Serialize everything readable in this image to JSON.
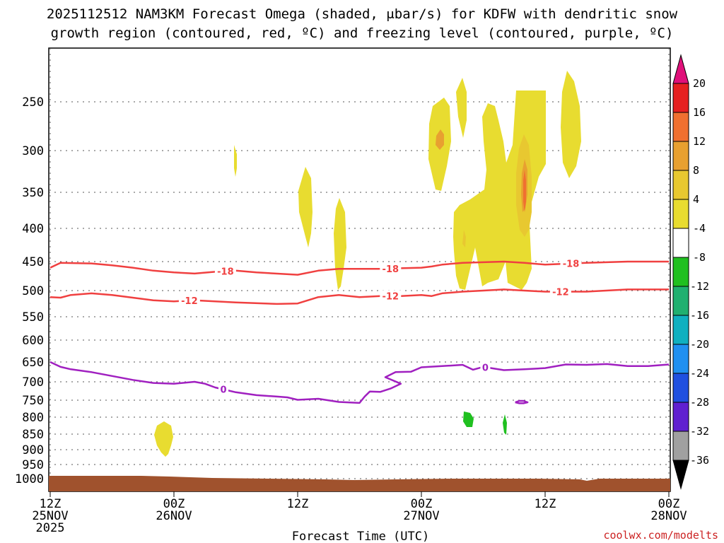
{
  "chart_data": {
    "type": "heatmap",
    "title_line1": "2025112512 NAM3KM Forecast Omega (shaded, μbar/s) for KDFW with dendritic snow",
    "title_line2": "growth region (contoured, red, ºC) and freezing level (contoured, purple, ºC)",
    "xlabel": "Forecast Time (UTC)",
    "credit": "coolwx.com/modelts",
    "x_hours_range": [
      0,
      60
    ],
    "y_pressure_range": [
      1050,
      200
    ],
    "x_ticks": [
      {
        "hour": 0,
        "lines": [
          "12Z",
          "25NOV",
          "2025"
        ]
      },
      {
        "hour": 12,
        "lines": [
          "00Z",
          "26NOV"
        ]
      },
      {
        "hour": 24,
        "lines": [
          "12Z"
        ]
      },
      {
        "hour": 36,
        "lines": [
          "00Z",
          "27NOV"
        ]
      },
      {
        "hour": 48,
        "lines": [
          "12Z"
        ]
      },
      {
        "hour": 60,
        "lines": [
          "00Z",
          "28NOV"
        ]
      }
    ],
    "y_ticks": [
      "250",
      "300",
      "350",
      "400",
      "450",
      "500",
      "550",
      "600",
      "650",
      "700",
      "750",
      "800",
      "850",
      "900",
      "950",
      "1000"
    ],
    "colorbar": {
      "labels": [
        "20",
        "16",
        "12",
        "8",
        "4",
        "-4",
        "-8",
        "-12",
        "-16",
        "-20",
        "-24",
        "-28",
        "-32",
        "-36"
      ],
      "colors": [
        "#e62020",
        "#f07030",
        "#e8a030",
        "#e8c830",
        "#e8dc30",
        "#ffffff",
        "#20c020",
        "#20b070",
        "#10b0c0",
        "#2090f0",
        "#2050e0",
        "#6020d0",
        "#9010c0",
        "#a0a0a0"
      ],
      "top_triangle_color": "#e0107a",
      "bottom_triangle_color": "#000000"
    },
    "contours": [
      {
        "name": "-18",
        "color": "#f04040",
        "points": [
          [
            0,
            460
          ],
          [
            1,
            452
          ],
          [
            4,
            453
          ],
          [
            6,
            456
          ],
          [
            8,
            460
          ],
          [
            10,
            465
          ],
          [
            12,
            468
          ],
          [
            14,
            470
          ],
          [
            16,
            467
          ],
          [
            18,
            465
          ],
          [
            20,
            468
          ],
          [
            24,
            472
          ],
          [
            26,
            465
          ],
          [
            28,
            462
          ],
          [
            30,
            462
          ],
          [
            32,
            462
          ],
          [
            34,
            461
          ],
          [
            36,
            460
          ],
          [
            37,
            458
          ],
          [
            38,
            455
          ],
          [
            40,
            452
          ],
          [
            44,
            450
          ],
          [
            46,
            452
          ],
          [
            48,
            455
          ],
          [
            52,
            452
          ],
          [
            56,
            450
          ],
          [
            60,
            450
          ]
        ],
        "label_hours": [
          17,
          33,
          50.5
        ]
      },
      {
        "name": "-12",
        "color": "#f04040",
        "points": [
          [
            0,
            512
          ],
          [
            1,
            513
          ],
          [
            2,
            508
          ],
          [
            4,
            505
          ],
          [
            6,
            508
          ],
          [
            8,
            513
          ],
          [
            10,
            518
          ],
          [
            12,
            520
          ],
          [
            14,
            518
          ],
          [
            18,
            522
          ],
          [
            22,
            525
          ],
          [
            24,
            524
          ],
          [
            26,
            512
          ],
          [
            28,
            508
          ],
          [
            30,
            512
          ],
          [
            32,
            510
          ],
          [
            34,
            510
          ],
          [
            36,
            508
          ],
          [
            37,
            510
          ],
          [
            38,
            505
          ],
          [
            40,
            502
          ],
          [
            42,
            500
          ],
          [
            44,
            498
          ],
          [
            46,
            500
          ],
          [
            48,
            502
          ],
          [
            52,
            502
          ],
          [
            56,
            498
          ],
          [
            60,
            498
          ]
        ],
        "label_hours": [
          13.5,
          33,
          49.5
        ]
      },
      {
        "name": "0",
        "color": "#a020c0",
        "points": [
          [
            0,
            650
          ],
          [
            1,
            662
          ],
          [
            2,
            668
          ],
          [
            4,
            675
          ],
          [
            6,
            685
          ],
          [
            8,
            695
          ],
          [
            10,
            703
          ],
          [
            12,
            705
          ],
          [
            14,
            700
          ],
          [
            15,
            705
          ],
          [
            16,
            715
          ],
          [
            18,
            728
          ],
          [
            20,
            736
          ],
          [
            22,
            740
          ],
          [
            23,
            742
          ],
          [
            24,
            749
          ],
          [
            26,
            746
          ],
          [
            28,
            755
          ],
          [
            30,
            758
          ],
          [
            30.5,
            740
          ],
          [
            31,
            726
          ],
          [
            32,
            727
          ],
          [
            33,
            718
          ],
          [
            34,
            705
          ],
          [
            32.5,
            688
          ],
          [
            33.5,
            675
          ],
          [
            35,
            674
          ],
          [
            36,
            663
          ],
          [
            38,
            660
          ],
          [
            40,
            657
          ],
          [
            41,
            669
          ],
          [
            42,
            662
          ],
          [
            44,
            670
          ],
          [
            46,
            668
          ],
          [
            48,
            665
          ],
          [
            50,
            656
          ],
          [
            52,
            657
          ],
          [
            54,
            655
          ],
          [
            56,
            660
          ],
          [
            58,
            660
          ],
          [
            60,
            656
          ]
        ],
        "label_hours": [
          16.8,
          42.2
        ]
      },
      {
        "name": "0-small",
        "color": "#a020c0",
        "points": [
          [
            45.1,
            756
          ],
          [
            45.5,
            752
          ],
          [
            45.9,
            752
          ],
          [
            46.3,
            756
          ],
          [
            45.9,
            759
          ],
          [
            45.5,
            759
          ],
          [
            45.1,
            756
          ]
        ],
        "label_hours": []
      }
    ]
  }
}
